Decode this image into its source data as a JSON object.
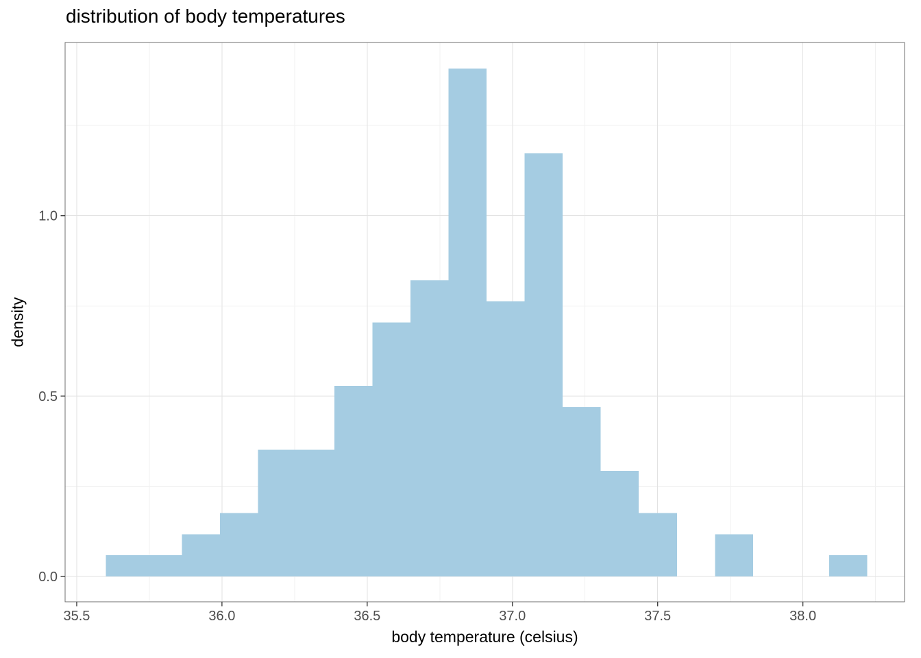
{
  "colors": {
    "background": "#FFFFFF",
    "bar_fill": "#A5CCE2",
    "panel_border": "#6F6F6F",
    "grid_major": "#E2E2E2",
    "grid_minor": "#F1F1F1",
    "tick_mark": "#333333",
    "tick_label": "#4D4D4D",
    "text": "#000000"
  },
  "chart_data": {
    "type": "bar",
    "subtype": "histogram",
    "title": "distribution of body temperatures",
    "xlabel": "body temperature (celsius)",
    "ylabel": "density",
    "xlim": [
      35.46,
      38.35
    ],
    "ylim": [
      -0.07,
      1.48
    ],
    "grid": true,
    "legend": false,
    "bin_width": 0.131,
    "x_ticks": [
      {
        "value": 35.5,
        "label": "35.5"
      },
      {
        "value": 36.0,
        "label": "36.0"
      },
      {
        "value": 36.5,
        "label": "36.5"
      },
      {
        "value": 37.0,
        "label": "37.0"
      },
      {
        "value": 37.5,
        "label": "37.5"
      },
      {
        "value": 38.0,
        "label": "38.0"
      }
    ],
    "x_minor_ticks": [
      35.75,
      36.25,
      36.75,
      37.25,
      37.75,
      38.25
    ],
    "y_ticks": [
      {
        "value": 0.0,
        "label": "0.0"
      },
      {
        "value": 0.5,
        "label": "0.5"
      },
      {
        "value": 1.0,
        "label": "1.0"
      }
    ],
    "y_minor_ticks": [
      0.25,
      0.75,
      1.25
    ],
    "bins": [
      {
        "x0": 35.6,
        "x1": 35.731,
        "density": 0.059
      },
      {
        "x0": 35.731,
        "x1": 35.862,
        "density": 0.059
      },
      {
        "x0": 35.862,
        "x1": 35.993,
        "density": 0.117
      },
      {
        "x0": 35.993,
        "x1": 36.124,
        "density": 0.176
      },
      {
        "x0": 36.124,
        "x1": 36.256,
        "density": 0.352
      },
      {
        "x0": 36.256,
        "x1": 36.387,
        "density": 0.352
      },
      {
        "x0": 36.387,
        "x1": 36.518,
        "density": 0.528
      },
      {
        "x0": 36.518,
        "x1": 36.649,
        "density": 0.704
      },
      {
        "x0": 36.649,
        "x1": 36.78,
        "density": 0.821
      },
      {
        "x0": 36.78,
        "x1": 36.911,
        "density": 1.408
      },
      {
        "x0": 36.911,
        "x1": 37.042,
        "density": 0.763
      },
      {
        "x0": 37.042,
        "x1": 37.173,
        "density": 1.173
      },
      {
        "x0": 37.173,
        "x1": 37.304,
        "density": 0.469
      },
      {
        "x0": 37.304,
        "x1": 37.435,
        "density": 0.293
      },
      {
        "x0": 37.435,
        "x1": 37.567,
        "density": 0.176
      },
      {
        "x0": 37.567,
        "x1": 37.698,
        "density": 0.0
      },
      {
        "x0": 37.698,
        "x1": 37.829,
        "density": 0.117
      },
      {
        "x0": 37.829,
        "x1": 37.96,
        "density": 0.0
      },
      {
        "x0": 37.96,
        "x1": 38.091,
        "density": 0.0
      },
      {
        "x0": 38.091,
        "x1": 38.222,
        "density": 0.059
      }
    ]
  }
}
